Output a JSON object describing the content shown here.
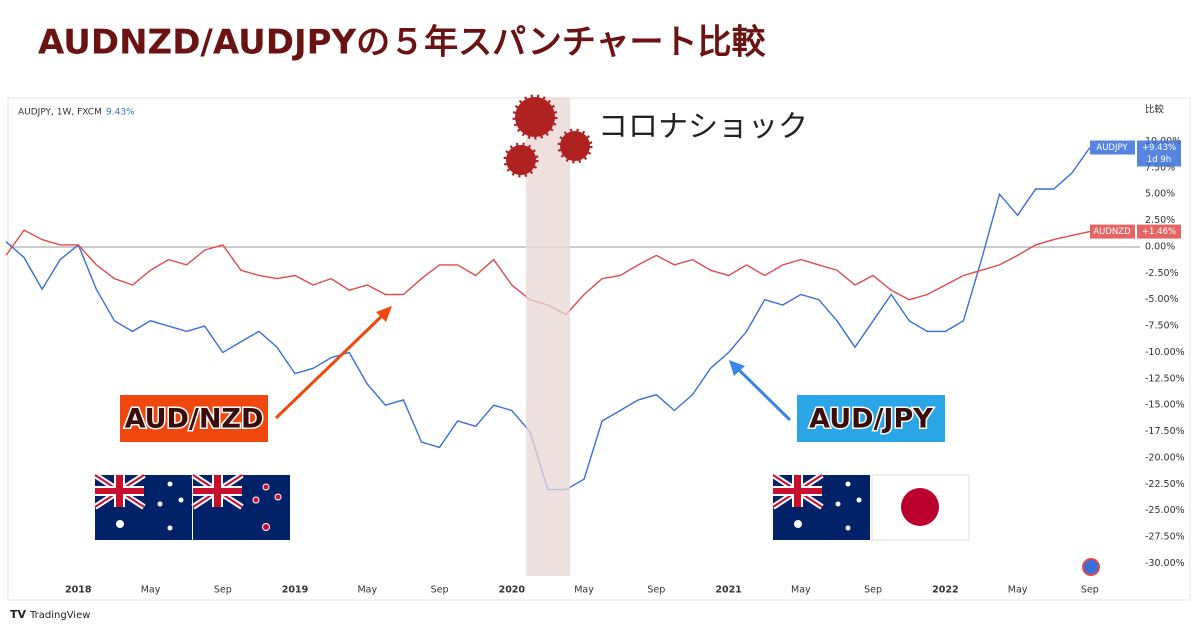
{
  "chart_data": {
    "type": "line",
    "title": "AUDNZD/AUDJPYの５年スパンチャート比較",
    "header": {
      "symbol": "AUDJPY, 1W, FXCM",
      "change": "9.43%"
    },
    "scale_label": "比較",
    "x": [
      "2017-09",
      "2017-10",
      "2017-11",
      "2017-12",
      "2018-01",
      "2018-02",
      "2018-03",
      "2018-04",
      "2018-05",
      "2018-06",
      "2018-07",
      "2018-08",
      "2018-09",
      "2018-10",
      "2018-11",
      "2018-12",
      "2019-01",
      "2019-02",
      "2019-03",
      "2019-04",
      "2019-05",
      "2019-06",
      "2019-07",
      "2019-08",
      "2019-09",
      "2019-10",
      "2019-11",
      "2019-12",
      "2020-01",
      "2020-02",
      "2020-03",
      "2020-04",
      "2020-05",
      "2020-06",
      "2020-07",
      "2020-08",
      "2020-09",
      "2020-10",
      "2020-11",
      "2020-12",
      "2021-01",
      "2021-02",
      "2021-03",
      "2021-04",
      "2021-05",
      "2021-06",
      "2021-07",
      "2021-08",
      "2021-09",
      "2021-10",
      "2021-11",
      "2021-12",
      "2022-01",
      "2022-02",
      "2022-03",
      "2022-04",
      "2022-05",
      "2022-06",
      "2022-07",
      "2022-08",
      "2022-09"
    ],
    "series": [
      {
        "name": "AUDJPY",
        "color": "#3a6fd8",
        "last_label": "+9.43%",
        "timer": "1d 9h",
        "values": [
          0.5,
          -1,
          -4,
          -1.2,
          0.2,
          -4,
          -7,
          -8,
          -7,
          -7.5,
          -8,
          -7.5,
          -10,
          -9,
          -8,
          -9.5,
          -12,
          -11.5,
          -10.5,
          -10,
          -13,
          -15,
          -14.5,
          -18.5,
          -19,
          -16.5,
          -17,
          -15,
          -15.5,
          -17.5,
          -23,
          -23,
          -22,
          -16.5,
          -15.5,
          -14.5,
          -14,
          -15.5,
          -14,
          -11.5,
          -10,
          -8,
          -5,
          -5.5,
          -4.5,
          -5,
          -7,
          -9.5,
          -7,
          -4.5,
          -7,
          -8,
          -8,
          -7,
          -1.2,
          5,
          3,
          5.5,
          5.5,
          7,
          9.43
        ]
      },
      {
        "name": "AUDNZD",
        "color": "#e04a4a",
        "last_label": "+1.46%",
        "values": [
          -0.8,
          1.6,
          0.7,
          0.2,
          0.2,
          -1.7,
          -3,
          -3.6,
          -2.2,
          -1.2,
          -1.7,
          -0.3,
          0.2,
          -2.2,
          -2.7,
          -3,
          -2.7,
          -3.6,
          -3,
          -4.1,
          -3.6,
          -4.5,
          -4.5,
          -3,
          -1.7,
          -1.7,
          -2.7,
          -1.2,
          -3.6,
          -5,
          -5.5,
          -6.4,
          -4.5,
          -3,
          -2.7,
          -1.7,
          -0.8,
          -1.7,
          -1.2,
          -2.2,
          -2.7,
          -1.7,
          -2.7,
          -1.7,
          -1.2,
          -1.7,
          -2.2,
          -3.6,
          -2.7,
          -4.1,
          -5,
          -4.5,
          -3.6,
          -2.7,
          -2.2,
          -1.7,
          -0.8,
          0.2,
          0.7,
          1.1,
          1.46
        ]
      }
    ],
    "baseline": 0,
    "xlim": [
      "2017-09",
      "2022-11"
    ],
    "xticks": [
      {
        "value": "2018-01",
        "label": "2018"
      },
      {
        "value": "2018-05",
        "label": "May"
      },
      {
        "value": "2018-09",
        "label": "Sep"
      },
      {
        "value": "2019-01",
        "label": "2019"
      },
      {
        "value": "2019-05",
        "label": "May"
      },
      {
        "value": "2019-09",
        "label": "Sep"
      },
      {
        "value": "2020-01",
        "label": "2020"
      },
      {
        "value": "2020-05",
        "label": "May"
      },
      {
        "value": "2020-09",
        "label": "Sep"
      },
      {
        "value": "2021-01",
        "label": "2021"
      },
      {
        "value": "2021-05",
        "label": "May"
      },
      {
        "value": "2021-09",
        "label": "Sep"
      },
      {
        "value": "2022-01",
        "label": "2022"
      },
      {
        "value": "2022-05",
        "label": "May"
      },
      {
        "value": "2022-09",
        "label": "Sep"
      }
    ],
    "ylim": [
      -31,
      14
    ],
    "yticks": [
      {
        "value": 10,
        "label": "10.00%"
      },
      {
        "value": 7.5,
        "label": "7.50%"
      },
      {
        "value": 5,
        "label": "5.00%"
      },
      {
        "value": 2.5,
        "label": "2.50%"
      },
      {
        "value": 0,
        "label": "0.00%"
      },
      {
        "value": -2.5,
        "label": "-2.50%"
      },
      {
        "value": -5,
        "label": "-5.00%"
      },
      {
        "value": -7.5,
        "label": "-7.50%"
      },
      {
        "value": -10,
        "label": "-10.00%"
      },
      {
        "value": -12.5,
        "label": "-12.50%"
      },
      {
        "value": -15,
        "label": "-15.00%"
      },
      {
        "value": -17.5,
        "label": "-17.50%"
      },
      {
        "value": -20,
        "label": "-20.00%"
      },
      {
        "value": -22.5,
        "label": "-22.50%"
      },
      {
        "value": -25,
        "label": "-25.00%"
      },
      {
        "value": -27.5,
        "label": "-27.50%"
      },
      {
        "value": -30,
        "label": "-30.00%"
      }
    ],
    "grid": false,
    "highlight": {
      "label": "コロナショック",
      "x": [
        "2020-02",
        "2020-04"
      ],
      "color": "#e9d6d6"
    },
    "annotations": [
      {
        "text": "AUD/NZD",
        "color": "#f0470f"
      },
      {
        "text": "AUD/JPY",
        "color": "#2aa6e6"
      }
    ],
    "footer": "TradingView"
  }
}
